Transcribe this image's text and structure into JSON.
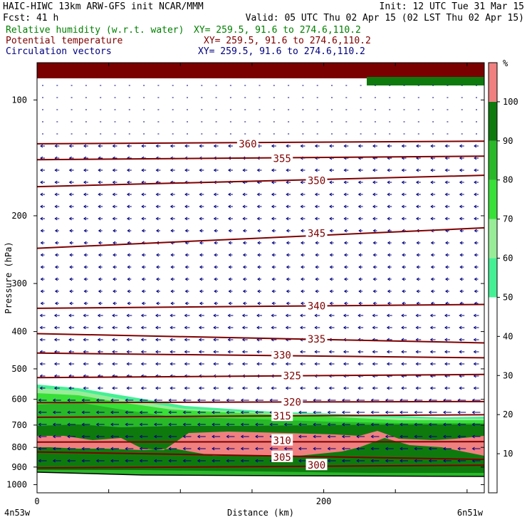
{
  "header": {
    "line1_left": "HAIC-HIWC 13km ARW-GFS init   NCAR/MMM",
    "line1_right": "Init: 12 UTC Tue 31 Mar 15",
    "line2_left": "Fcst:   41 h",
    "line2_right": "Valid: 05 UTC Thu 02 Apr 15 (02 LST Thu 02 Apr 15)",
    "field1_name": "Relative humidity (w.r.t. water)",
    "field1_xy": "XY= 259.5, 91.6 to 274.6,110.2",
    "field2_name": "Potential temperature",
    "field2_xy": "XY= 259.5, 91.6 to 274.6,110.2",
    "field3_name": "Circulation vectors",
    "field3_xy": "XY= 259.5, 91.6 to 274.6,110.2"
  },
  "colors": {
    "field1_text": "#008000",
    "field2_text": "#800000",
    "field3_text": "#000080",
    "theta_line": "#800000",
    "vector": "#000080",
    "top_band": "#7a0000"
  },
  "chart_data": {
    "type": "cross-section",
    "xlabel": "Distance (km)",
    "ylabel": "Pressure (hPa)",
    "x_ticks": [
      "0",
      "200"
    ],
    "x_tick_values": [
      0,
      200
    ],
    "xlim": [
      0,
      312
    ],
    "y_ticks": [
      "100",
      "200",
      "300",
      "400",
      "500",
      "600",
      "700",
      "800",
      "900",
      "1000"
    ],
    "y_tick_values": [
      100,
      200,
      300,
      400,
      500,
      600,
      700,
      800,
      900,
      1000
    ],
    "ylim": [
      1050,
      80
    ],
    "y_axis": "pressure-log",
    "left_endpoint_label": "4n53w",
    "right_endpoint_label": "6n51w",
    "colorbar": {
      "unit": "%",
      "tick_labels": [
        "10",
        "20",
        "30",
        "40",
        "50",
        "60",
        "70",
        "80",
        "90",
        "100"
      ],
      "levels": [
        0,
        50,
        60,
        70,
        80,
        90,
        100,
        110
      ],
      "colors": [
        "#ffffff",
        "#44f094",
        "#98ec98",
        "#38e038",
        "#28b828",
        "#0e7a0e",
        "#f08080"
      ]
    },
    "theta_contours": [
      {
        "label": "360",
        "x": [
          0,
          312
        ],
        "p": [
          130,
          128
        ],
        "label_x": 147,
        "label_p": 130
      },
      {
        "label": "355",
        "x": [
          0,
          312
        ],
        "p": [
          143,
          140
        ],
        "label_x": 171,
        "label_p": 142
      },
      {
        "label": "350",
        "x": [
          0,
          312
        ],
        "p": [
          168,
          157
        ],
        "label_x": 195,
        "label_p": 162
      },
      {
        "label": "345",
        "x": [
          0,
          312
        ],
        "p": [
          243,
          215
        ],
        "label_x": 195,
        "label_p": 222
      },
      {
        "label": "340",
        "x": [
          0,
          312
        ],
        "p": [
          348,
          340
        ],
        "label_x": 195,
        "label_p": 343
      },
      {
        "label": "335",
        "x": [
          0,
          312
        ],
        "p": [
          405,
          428
        ],
        "label_x": 195,
        "label_p": 418
      },
      {
        "label": "330",
        "x": [
          0,
          312
        ],
        "p": [
          455,
          468
        ],
        "label_x": 171,
        "label_p": 460
      },
      {
        "label": "325",
        "x": [
          0,
          312
        ],
        "p": [
          527,
          517
        ],
        "label_x": 178,
        "label_p": 521
      },
      {
        "label": "320",
        "x": [
          0,
          312
        ],
        "p": [
          612,
          608
        ],
        "label_x": 178,
        "label_p": 610
      },
      {
        "label": "315",
        "x": [
          0,
          312
        ],
        "p": [
          668,
          658
        ],
        "label_x": 171,
        "label_p": 663
      },
      {
        "label": "310",
        "x": [
          0,
          312
        ],
        "p": [
          775,
          773
        ],
        "label_x": 171,
        "label_p": 768
      },
      {
        "label": "305",
        "x": [
          0,
          312
        ],
        "p": [
          822,
          860
        ],
        "label_x": 171,
        "label_p": 848
      },
      {
        "label": "300",
        "x": [
          0,
          312
        ],
        "p": [
          905,
          890
        ],
        "label_x": 195,
        "label_p": 890
      }
    ],
    "circulation_vectors": "predominantly easterly flow (arrows pointing west) throughout 200-1000 hPa"
  }
}
